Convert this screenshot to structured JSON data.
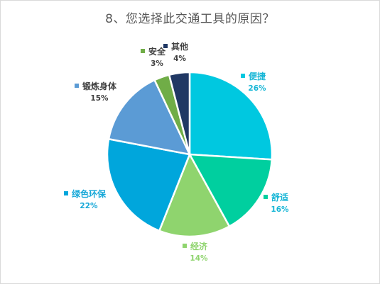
{
  "chart_data": {
    "type": "pie",
    "title": "8、您选择此交通工具的原因？",
    "start_angle_deg": 0,
    "direction": "clockwise",
    "slices": [
      {
        "label": "便捷",
        "value": 26,
        "display": "26%",
        "color": "#00c8e0",
        "label_color": "#17b6d6",
        "marker_color": "#00c8e0"
      },
      {
        "label": "舒适",
        "value": 16,
        "display": "16%",
        "color": "#00cf9f",
        "label_color": "#17b6d6",
        "marker_color": "#00cf9f"
      },
      {
        "label": "经济",
        "value": 14,
        "display": "14%",
        "color": "#8fd46e",
        "label_color": "#8fd46e",
        "marker_color": "#8fd46e"
      },
      {
        "label": "绿色环保",
        "value": 22,
        "display": "22%",
        "color": "#00a6dc",
        "label_color": "#17a8d8",
        "marker_color": "#00a6dc"
      },
      {
        "label": "锻炼身体",
        "value": 15,
        "display": "15%",
        "color": "#5b9bd5",
        "label_color": "#404040",
        "marker_color": "#5b9bd5"
      },
      {
        "label": "安全",
        "value": 3,
        "display": "3%",
        "color": "#70ad47",
        "label_color": "#404040",
        "marker_color": "#70ad47"
      },
      {
        "label": "其他",
        "value": 4,
        "display": "4%",
        "color": "#203864",
        "label_color": "#404040",
        "marker_color": "#203864"
      }
    ]
  }
}
